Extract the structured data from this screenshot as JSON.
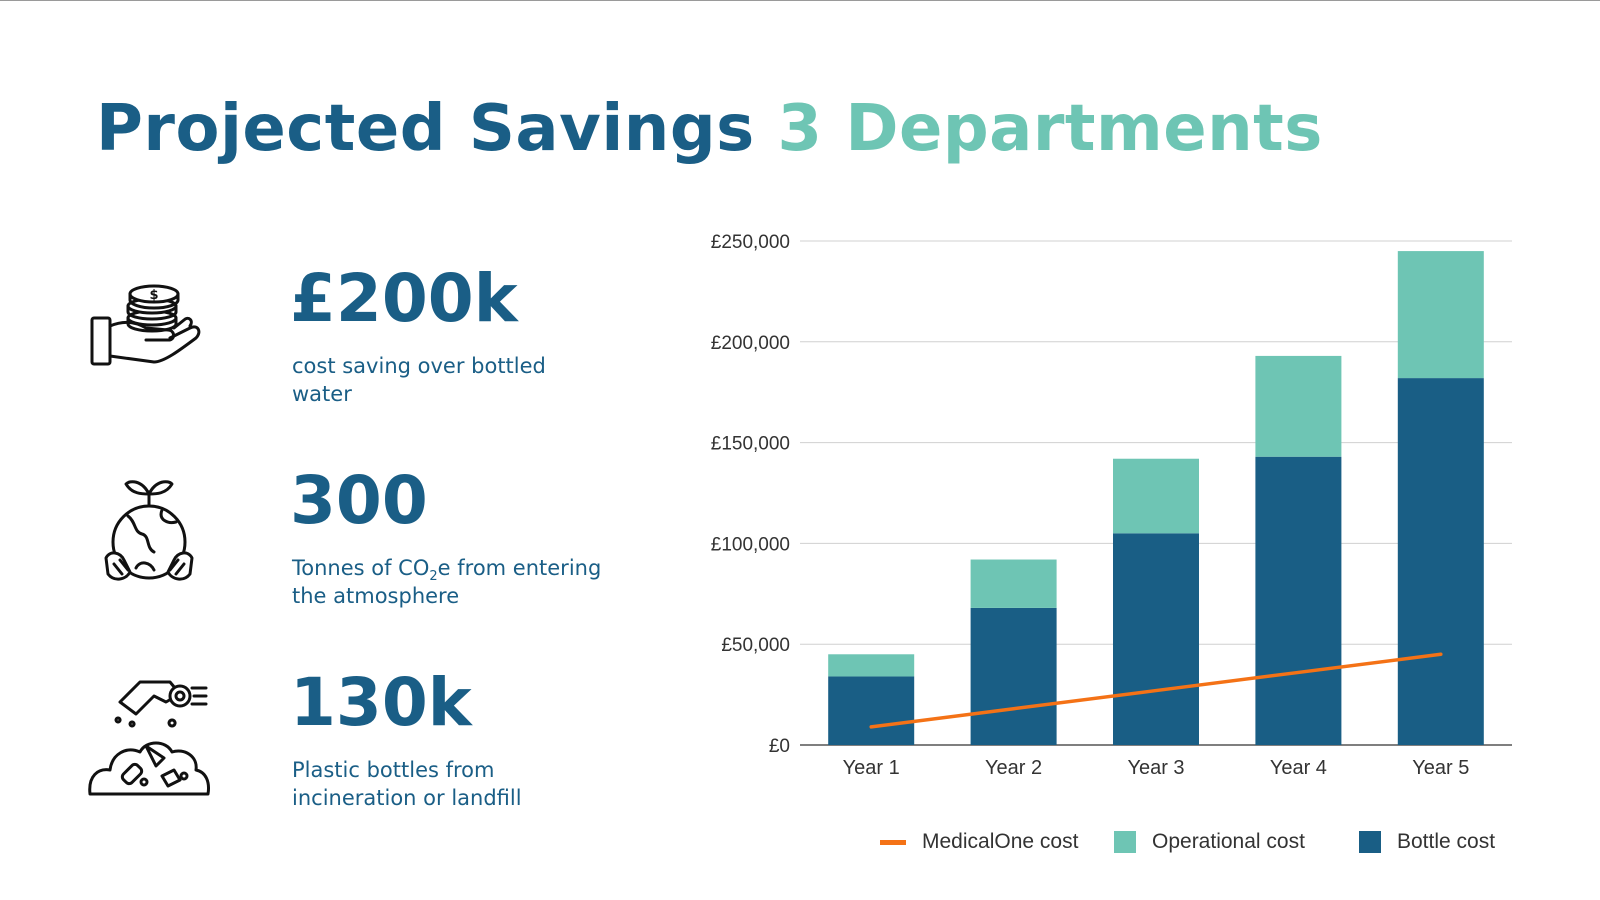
{
  "page": {
    "title_part1": "Projected Savings",
    "title_part2": "3 Departments"
  },
  "stats": [
    {
      "value": "£200k",
      "desc": "cost saving over bottled water",
      "icon": "hand-coins-icon"
    },
    {
      "value": "300",
      "desc_pre": "Tonnes of CO",
      "desc_sub": "2",
      "desc_post": "e from entering the atmosphere",
      "icon": "globe-plant-icon"
    },
    {
      "value": "130k",
      "desc": "Plastic bottles from incineration or landfill",
      "icon": "bottle-waste-icon"
    }
  ],
  "colors": {
    "title_dark": "#1a5e86",
    "title_light": "#6ec5b4",
    "bottle": "#195e85",
    "operational": "#6ec5b4",
    "line": "#f47216",
    "grid": "#d0d0d0",
    "axis_text": "#333333"
  },
  "chart_data": {
    "type": "bar",
    "stacked": true,
    "categories": [
      "Year 1",
      "Year 2",
      "Year 3",
      "Year 4",
      "Year 5"
    ],
    "series": [
      {
        "name": "Bottle cost",
        "type": "bar",
        "color": "#195e85",
        "values": [
          34000,
          68000,
          105000,
          143000,
          182000
        ]
      },
      {
        "name": "Operational cost",
        "type": "bar",
        "color": "#6ec5b4",
        "values": [
          11000,
          24000,
          37000,
          50000,
          63000
        ]
      },
      {
        "name": "MedicalOne cost",
        "type": "line",
        "color": "#f47216",
        "values": [
          9000,
          18000,
          27000,
          36000,
          45000
        ]
      }
    ],
    "ylim": [
      0,
      250000
    ],
    "yticks": [
      0,
      50000,
      100000,
      150000,
      200000,
      250000
    ],
    "ytick_labels": [
      "£0",
      "£50,000",
      "£100,000",
      "£150,000",
      "£200,000",
      "£250,000"
    ],
    "grid": true,
    "legend": {
      "position": "bottom-right",
      "entries": [
        "MedicalOne cost",
        "Operational cost",
        "Bottle cost"
      ]
    }
  }
}
